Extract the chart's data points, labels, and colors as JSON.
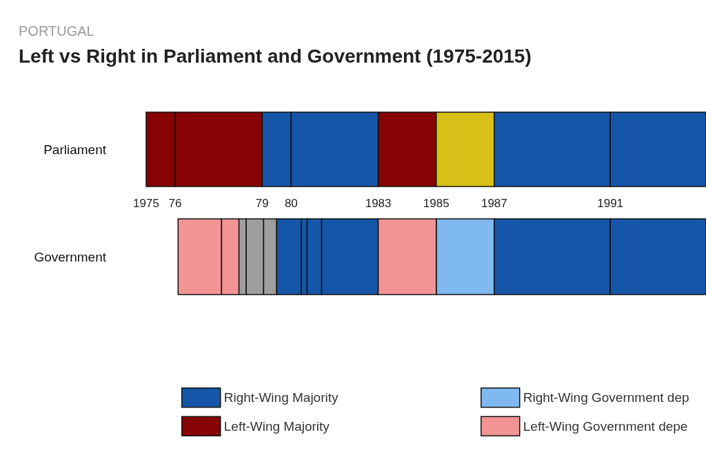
{
  "chart_data": {
    "type": "bar",
    "orientation": "horizontal",
    "title": "Left vs Right in Parliament and Government (1975-2015)",
    "subtitle": "PORTUGAL",
    "categories": [
      "Parliament",
      "Government"
    ],
    "xlim": [
      1975,
      1994.3
    ],
    "xticks": [
      1975,
      {
        "value": 1976,
        "label": "76"
      },
      {
        "value": 1979,
        "label": "79"
      },
      {
        "value": 1980,
        "label": "80"
      },
      1983,
      1985,
      1987,
      1991
    ],
    "tick_labels": "x",
    "grid": false,
    "legend": "bottom",
    "series": [
      {
        "name": "Right-Wing Majority",
        "color": "#1656a8",
        "base": [
          1979,
          null
        ],
        "values": [
          1,
          null
        ]
      },
      {
        "name": "Left-Wing Majority",
        "color": "#860404",
        "base": [
          1975,
          null
        ],
        "values": [
          1,
          null
        ]
      },
      {
        "name": "Right-Wing Government dep",
        "color": "#80b8f0",
        "base": [
          null,
          1985
        ],
        "values": [
          null,
          2
        ]
      },
      {
        "name": "Left-Wing Government depe",
        "color": "#f29494",
        "base": [
          null,
          1976.1
        ],
        "values": [
          null,
          1.5
        ]
      },
      {
        "color": "#860404",
        "base": [
          1976,
          null
        ],
        "values": [
          3,
          null
        ]
      },
      {
        "color": "#1656a8",
        "base": [
          1980,
          null
        ],
        "values": [
          3,
          null
        ]
      },
      {
        "color": "#860404",
        "base": [
          1983,
          null
        ],
        "values": [
          2,
          null
        ]
      },
      {
        "color": "#d8c018",
        "base": [
          1985,
          null
        ],
        "values": [
          2,
          null
        ]
      },
      {
        "color": "#1656a8",
        "base": [
          1987,
          null
        ],
        "values": [
          4,
          null
        ]
      },
      {
        "color": "#1656a8",
        "base": [
          1991,
          null
        ],
        "values": [
          3.3,
          null
        ]
      },
      {
        "color": "#f29494",
        "base": [
          null,
          1977.6
        ],
        "values": [
          null,
          0.6
        ]
      },
      {
        "color": "#9e9e9e",
        "base": [
          null,
          1978.2
        ],
        "values": [
          null,
          0.25
        ]
      },
      {
        "color": "#9e9e9e",
        "base": [
          null,
          1978.45
        ],
        "values": [
          null,
          0.6
        ]
      },
      {
        "color": "#9e9e9e",
        "base": [
          null,
          1979.05
        ],
        "values": [
          null,
          0.45
        ]
      },
      {
        "color": "#1656a8",
        "base": [
          null,
          1979.5
        ],
        "values": [
          null,
          0.85
        ]
      },
      {
        "color": "#1656a8",
        "base": [
          null,
          1980.35
        ],
        "values": [
          null,
          0.2
        ]
      },
      {
        "color": "#1656a8",
        "base": [
          null,
          1980.55
        ],
        "values": [
          null,
          0.5
        ]
      },
      {
        "color": "#1656a8",
        "base": [
          null,
          1981.05
        ],
        "values": [
          null,
          1.95
        ]
      },
      {
        "color": "#f29494",
        "base": [
          null,
          1983
        ],
        "values": [
          null,
          2
        ]
      },
      {
        "color": "#1656a8",
        "base": [
          null,
          1987
        ],
        "values": [
          null,
          4
        ]
      },
      {
        "color": "#1656a8",
        "base": [
          null,
          1991
        ],
        "values": [
          null,
          3.3
        ]
      }
    ]
  }
}
